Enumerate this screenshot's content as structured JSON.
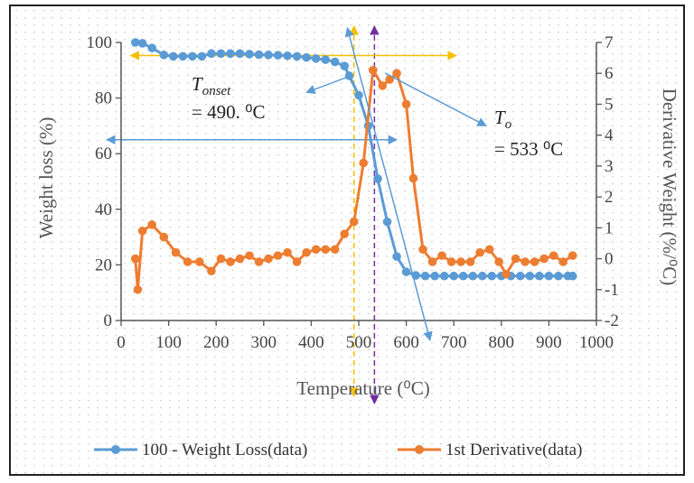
{
  "chart_data": {
    "type": "line",
    "xlabel": "Temperature (⁰C)",
    "ylabel_left": "Weight loss (%)",
    "ylabel_right": "Derivative Weight (%/⁰C)",
    "xlim": [
      0,
      1000
    ],
    "ylim_left": [
      0,
      100
    ],
    "ylim_right": [
      -2,
      7
    ],
    "x_ticks": [
      0,
      100,
      200,
      300,
      400,
      500,
      600,
      700,
      800,
      900,
      1000
    ],
    "y_left_ticks": [
      0,
      20,
      40,
      60,
      80,
      100
    ],
    "y_right_ticks": [
      -2,
      -1,
      0,
      1,
      2,
      3,
      4,
      5,
      6,
      7
    ],
    "legend_position": "bottom",
    "grid": "dotted",
    "series": [
      {
        "name": "100 - Weight Loss(data)",
        "axis": "left",
        "color": "#5b9bd5",
        "x": [
          30,
          45,
          65,
          90,
          110,
          130,
          150,
          170,
          190,
          210,
          230,
          250,
          270,
          290,
          310,
          330,
          350,
          370,
          390,
          410,
          430,
          450,
          470,
          480,
          500,
          520,
          540,
          560,
          580,
          600,
          620,
          640,
          660,
          680,
          700,
          720,
          740,
          760,
          780,
          800,
          820,
          840,
          860,
          880,
          900,
          920,
          940,
          950
        ],
        "values": [
          100,
          99.7,
          98,
          95.5,
          95,
          95,
          95,
          95,
          96,
          96,
          96,
          96,
          95.8,
          95.6,
          95.5,
          95.4,
          95.2,
          95,
          94.6,
          94.2,
          93.8,
          93,
          91.5,
          88,
          81,
          70,
          51,
          35.5,
          23,
          17.5,
          16.2,
          16,
          16,
          16,
          16,
          16,
          16,
          16,
          16,
          16,
          16,
          16,
          16,
          16,
          16,
          16,
          16,
          16
        ]
      },
      {
        "name": "1st Derivative(data)",
        "axis": "right",
        "color": "#ed7d31",
        "x": [
          30,
          35,
          45,
          65,
          90,
          115,
          140,
          165,
          190,
          210,
          230,
          250,
          270,
          290,
          310,
          330,
          350,
          370,
          390,
          410,
          430,
          450,
          470,
          490,
          510,
          530,
          550,
          565,
          580,
          600,
          615,
          635,
          655,
          675,
          695,
          715,
          735,
          755,
          775,
          795,
          810,
          830,
          850,
          870,
          890,
          910,
          930,
          950
        ],
        "values": [
          0,
          -1,
          0.9,
          1.1,
          0.7,
          0.2,
          -0.1,
          -0.1,
          -0.4,
          0,
          -0.1,
          0,
          0.1,
          -0.1,
          0,
          0.1,
          0.2,
          -0.1,
          0.2,
          0.3,
          0.3,
          0.3,
          0.8,
          1.2,
          3.1,
          6.1,
          5.6,
          5.8,
          6.0,
          5.0,
          2.6,
          0.3,
          -0.1,
          0.1,
          -0.1,
          -0.1,
          -0.1,
          0.2,
          0.3,
          -0.1,
          -0.5,
          0,
          -0.1,
          -0.1,
          0,
          0.1,
          -0.1,
          0.1
        ]
      }
    ],
    "annotations": {
      "t_onset_label": "T",
      "t_onset_sub": "onset",
      "t_onset_value": "= 490. ⁰C",
      "t_o_label": "T",
      "t_o_sub": "o",
      "t_o_value": "= 533 ⁰C",
      "onset_x": 490,
      "peak_x": 533
    },
    "colors": {
      "blue_series": "#5b9bd5",
      "orange_series": "#ed7d31",
      "yellow_guide": "#f5c000",
      "purple_guide": "#7030a0",
      "arrow_blue": "#5b9bd5"
    }
  }
}
